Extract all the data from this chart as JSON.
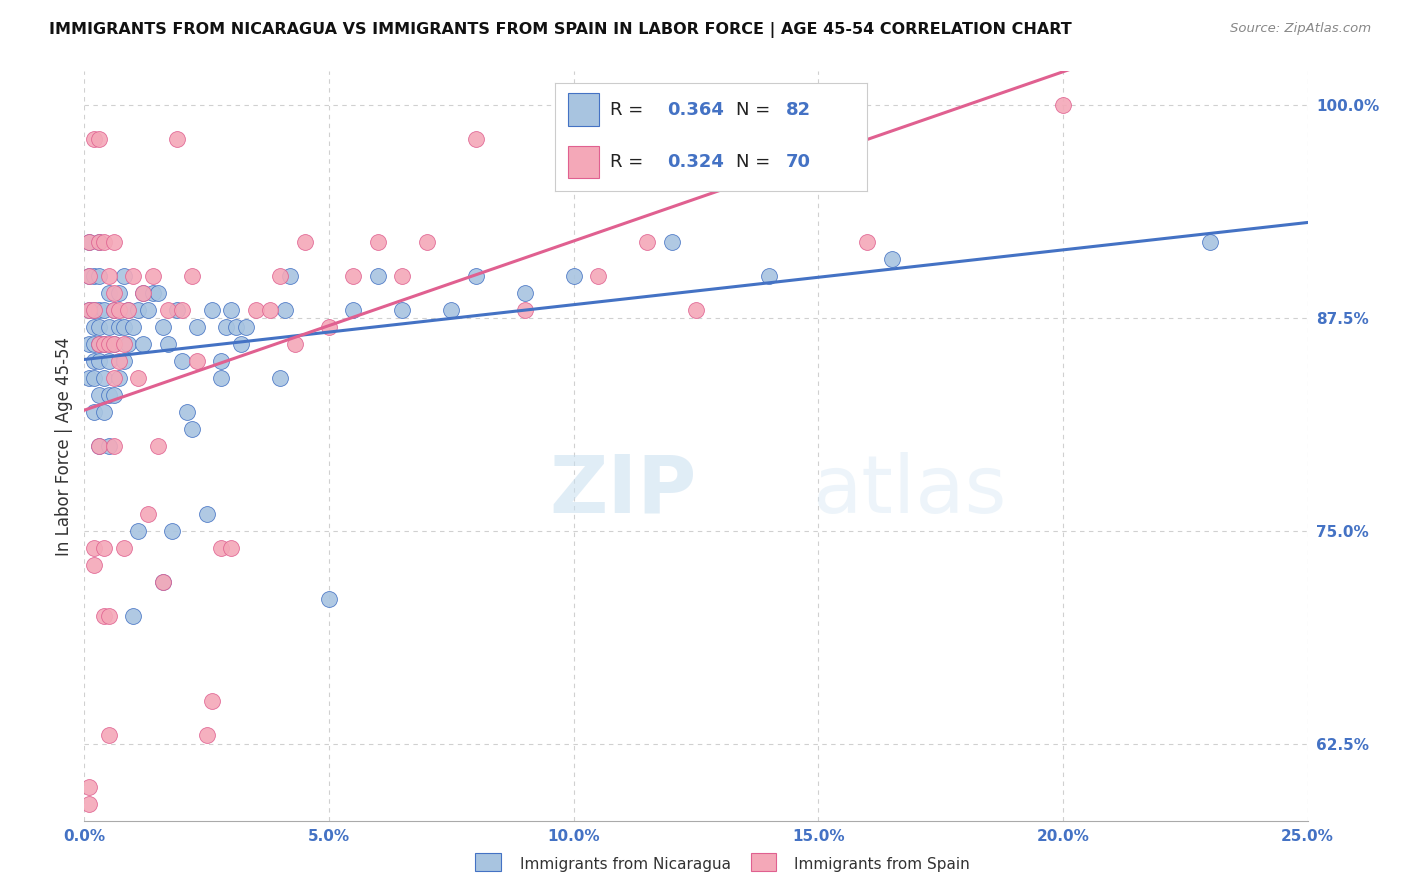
{
  "title": "IMMIGRANTS FROM NICARAGUA VS IMMIGRANTS FROM SPAIN IN LABOR FORCE | AGE 45-54 CORRELATION CHART",
  "source": "Source: ZipAtlas.com",
  "xlabel_vals": [
    0.0,
    0.05,
    0.1,
    0.15,
    0.2,
    0.25
  ],
  "ylabel_label": "In Labor Force | Age 45-54",
  "xlim": [
    0.0,
    0.25
  ],
  "ylim": [
    0.58,
    1.02
  ],
  "nicaragua_color": "#a8c4e0",
  "spain_color": "#f4a8b8",
  "trendline_nicaragua_color": "#4472c4",
  "trendline_spain_color": "#e06090",
  "R_nicaragua": 0.364,
  "N_nicaragua": 82,
  "R_spain": 0.324,
  "N_spain": 70,
  "right_ytick_labels": [
    "100.0%",
    "87.5%",
    "75.0%",
    "62.5%"
  ],
  "right_ytick_vals": [
    1.0,
    0.875,
    0.75,
    0.625
  ],
  "grid_color": "#d0d0d0",
  "background_color": "#ffffff",
  "nicaragua_x": [
    0.001,
    0.001,
    0.001,
    0.001,
    0.001,
    0.002,
    0.002,
    0.002,
    0.002,
    0.002,
    0.002,
    0.002,
    0.003,
    0.003,
    0.003,
    0.003,
    0.003,
    0.003,
    0.003,
    0.003,
    0.004,
    0.004,
    0.004,
    0.004,
    0.005,
    0.005,
    0.005,
    0.005,
    0.005,
    0.006,
    0.006,
    0.006,
    0.007,
    0.007,
    0.007,
    0.008,
    0.008,
    0.008,
    0.009,
    0.009,
    0.01,
    0.01,
    0.011,
    0.011,
    0.012,
    0.012,
    0.013,
    0.014,
    0.015,
    0.016,
    0.016,
    0.017,
    0.018,
    0.019,
    0.02,
    0.021,
    0.022,
    0.023,
    0.025,
    0.026,
    0.028,
    0.028,
    0.029,
    0.03,
    0.031,
    0.032,
    0.033,
    0.04,
    0.041,
    0.042,
    0.05,
    0.055,
    0.06,
    0.065,
    0.075,
    0.08,
    0.09,
    0.1,
    0.12,
    0.14,
    0.165,
    0.23
  ],
  "nicaragua_y": [
    0.84,
    0.86,
    0.88,
    0.9,
    0.92,
    0.82,
    0.84,
    0.85,
    0.86,
    0.87,
    0.88,
    0.9,
    0.8,
    0.83,
    0.85,
    0.86,
    0.87,
    0.88,
    0.9,
    0.92,
    0.82,
    0.84,
    0.86,
    0.88,
    0.8,
    0.83,
    0.85,
    0.87,
    0.89,
    0.83,
    0.86,
    0.88,
    0.84,
    0.87,
    0.89,
    0.85,
    0.87,
    0.9,
    0.86,
    0.88,
    0.7,
    0.87,
    0.75,
    0.88,
    0.86,
    0.89,
    0.88,
    0.89,
    0.89,
    0.72,
    0.87,
    0.86,
    0.75,
    0.88,
    0.85,
    0.82,
    0.81,
    0.87,
    0.76,
    0.88,
    0.84,
    0.85,
    0.87,
    0.88,
    0.87,
    0.86,
    0.87,
    0.84,
    0.88,
    0.9,
    0.71,
    0.88,
    0.9,
    0.88,
    0.88,
    0.9,
    0.89,
    0.9,
    0.92,
    0.9,
    0.91,
    0.92
  ],
  "spain_x": [
    0.001,
    0.001,
    0.001,
    0.001,
    0.001,
    0.002,
    0.002,
    0.002,
    0.002,
    0.003,
    0.003,
    0.003,
    0.003,
    0.004,
    0.004,
    0.004,
    0.004,
    0.005,
    0.005,
    0.005,
    0.005,
    0.006,
    0.006,
    0.006,
    0.006,
    0.006,
    0.006,
    0.007,
    0.007,
    0.008,
    0.008,
    0.009,
    0.01,
    0.011,
    0.012,
    0.013,
    0.014,
    0.015,
    0.016,
    0.017,
    0.019,
    0.02,
    0.022,
    0.023,
    0.025,
    0.026,
    0.028,
    0.03,
    0.035,
    0.038,
    0.04,
    0.043,
    0.045,
    0.05,
    0.055,
    0.06,
    0.065,
    0.07,
    0.08,
    0.09,
    0.1,
    0.105,
    0.11,
    0.115,
    0.12,
    0.125,
    0.13,
    0.15,
    0.16,
    0.2
  ],
  "spain_y": [
    0.59,
    0.6,
    0.88,
    0.9,
    0.92,
    0.73,
    0.74,
    0.88,
    0.98,
    0.8,
    0.86,
    0.92,
    0.98,
    0.7,
    0.74,
    0.86,
    0.92,
    0.63,
    0.7,
    0.86,
    0.9,
    0.8,
    0.84,
    0.86,
    0.88,
    0.89,
    0.92,
    0.85,
    0.88,
    0.74,
    0.86,
    0.88,
    0.9,
    0.84,
    0.89,
    0.76,
    0.9,
    0.8,
    0.72,
    0.88,
    0.98,
    0.88,
    0.9,
    0.85,
    0.63,
    0.65,
    0.74,
    0.74,
    0.88,
    0.88,
    0.9,
    0.86,
    0.92,
    0.87,
    0.9,
    0.92,
    0.9,
    0.92,
    0.98,
    0.88,
    0.98,
    0.9,
    0.98,
    0.92,
    0.98,
    0.88,
    0.98,
    0.98,
    0.92,
    1.0
  ]
}
